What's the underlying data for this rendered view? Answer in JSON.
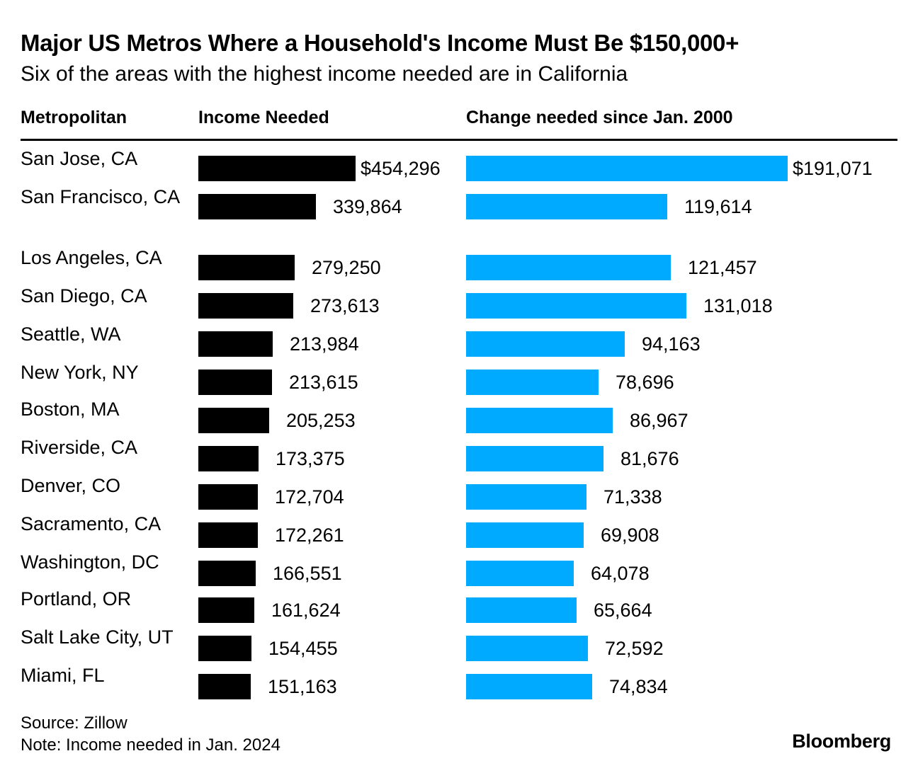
{
  "header": {
    "title": "Major US Metros Where a Household's Income Must Be $150,000+",
    "subtitle": "Six of the areas with the highest income needed are in California"
  },
  "columns": {
    "metro": "Metropolitan",
    "income": "Income Needed",
    "change": "Change needed since Jan. 2000"
  },
  "footer": {
    "source": "Source: Zillow",
    "note": "Note: Income needed in Jan. 2024",
    "brand": "Bloomberg"
  },
  "colors": {
    "income_bar": "#000000",
    "change_bar": "#00aaff"
  },
  "chart_data": {
    "type": "bar",
    "orientation": "horizontal",
    "title": "Major US Metros Where a Household's Income Must Be $150,000+",
    "categories": [
      "San Jose, CA",
      "San Francisco, CA",
      "Los Angeles, CA",
      "San Diego, CA",
      "Seattle, WA",
      "New York, NY",
      "Boston, MA",
      "Riverside, CA",
      "Denver, CO",
      "Sacramento, CA",
      "Washington, DC",
      "Portland, OR",
      "Salt Lake City, UT",
      "Miami, FL"
    ],
    "series": [
      {
        "name": "Income Needed",
        "values": [
          454296,
          339864,
          279250,
          273613,
          213984,
          213615,
          205253,
          173375,
          172704,
          172261,
          166551,
          161624,
          154455,
          151163
        ],
        "labels": [
          "$454,296",
          "339,864",
          "279,250",
          "273,613",
          "213,984",
          "213,615",
          "205,253",
          "173,375",
          "172,704",
          "172,261",
          "166,551",
          "161,624",
          "154,455",
          "151,163"
        ]
      },
      {
        "name": "Change needed since Jan. 2000",
        "values": [
          191071,
          119614,
          121457,
          131018,
          94163,
          78696,
          86967,
          81676,
          71338,
          69908,
          64078,
          65664,
          72592,
          74834
        ],
        "labels": [
          "$191,071",
          "119,614",
          "121,457",
          "131,018",
          "94,163",
          "78,696",
          "86,967",
          "81,676",
          "71,338",
          "69,908",
          "64,078",
          "65,664",
          "72,592",
          "74,834"
        ]
      }
    ]
  }
}
